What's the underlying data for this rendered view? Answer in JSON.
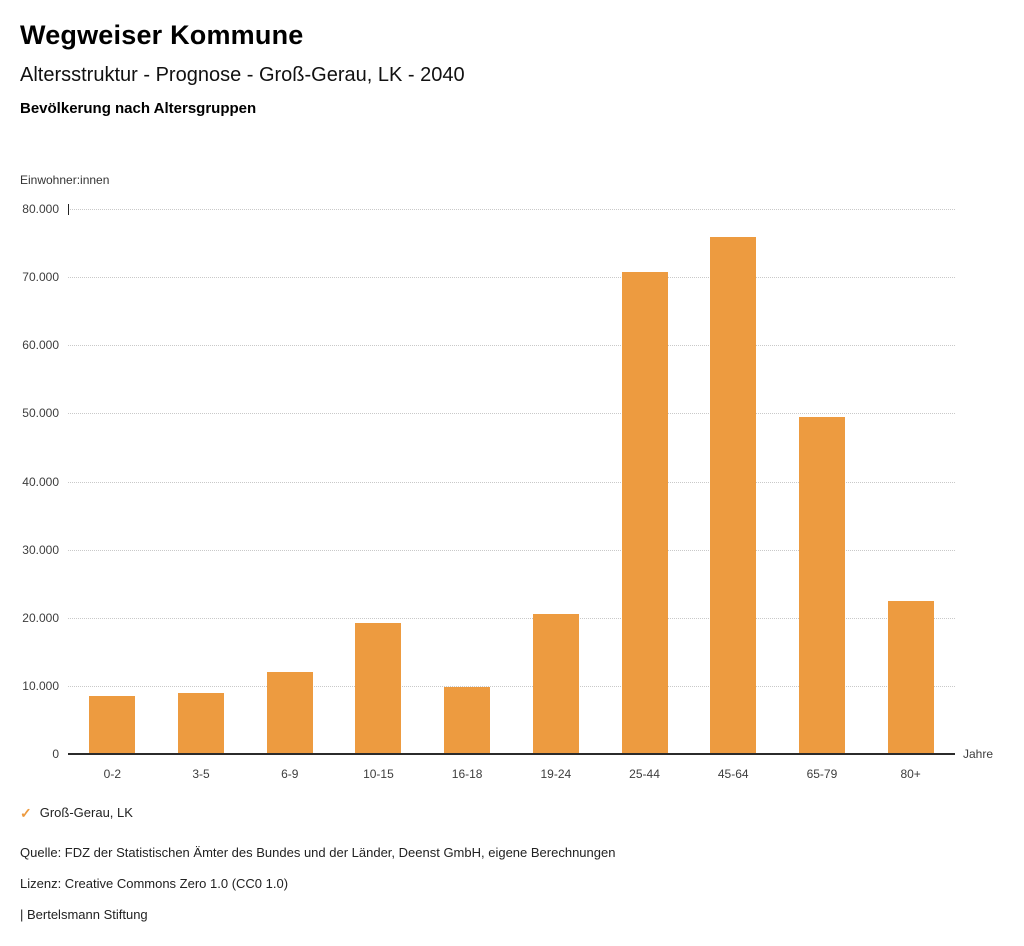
{
  "header": {
    "brand": "Wegweiser Kommune",
    "title": "Altersstruktur - Prognose - Groß-Gerau, LK - 2040",
    "subtitle": "Bevölkerung nach Altersgruppen"
  },
  "chart_data": {
    "type": "bar",
    "title": "Bevölkerung nach Altersgruppen",
    "ylabel": "Einwohner:innen",
    "xlabel": "Jahre",
    "categories": [
      "0-2",
      "3-5",
      "6-9",
      "10-15",
      "16-18",
      "19-24",
      "25-44",
      "45-64",
      "65-79",
      "80+"
    ],
    "series": [
      {
        "name": "Groß-Gerau, LK",
        "color": "#ED9B40",
        "values": [
          8500,
          8900,
          12100,
          19200,
          9900,
          20500,
          70800,
          75900,
          49400,
          22400
        ]
      }
    ],
    "ylim": [
      0,
      80000
    ],
    "ytick_step": 10000,
    "ytick_labels": [
      "0",
      "10.000",
      "20.000",
      "30.000",
      "40.000",
      "50.000",
      "60.000",
      "70.000",
      "80.000"
    ],
    "grid": "horizontal-dotted",
    "legend_position": "bottom-left"
  },
  "legend": {
    "items": [
      {
        "label": "Groß-Gerau, LK",
        "marker": "✓",
        "color": "#ED9B40"
      }
    ]
  },
  "footer": {
    "source": "Quelle: FDZ der Statistischen Ämter des Bundes und der Länder, Deenst GmbH, eigene Berechnungen",
    "license": "Lizenz: Creative Commons Zero 1.0 (CC0 1.0)",
    "attribution": "| Bertelsmann Stiftung"
  }
}
